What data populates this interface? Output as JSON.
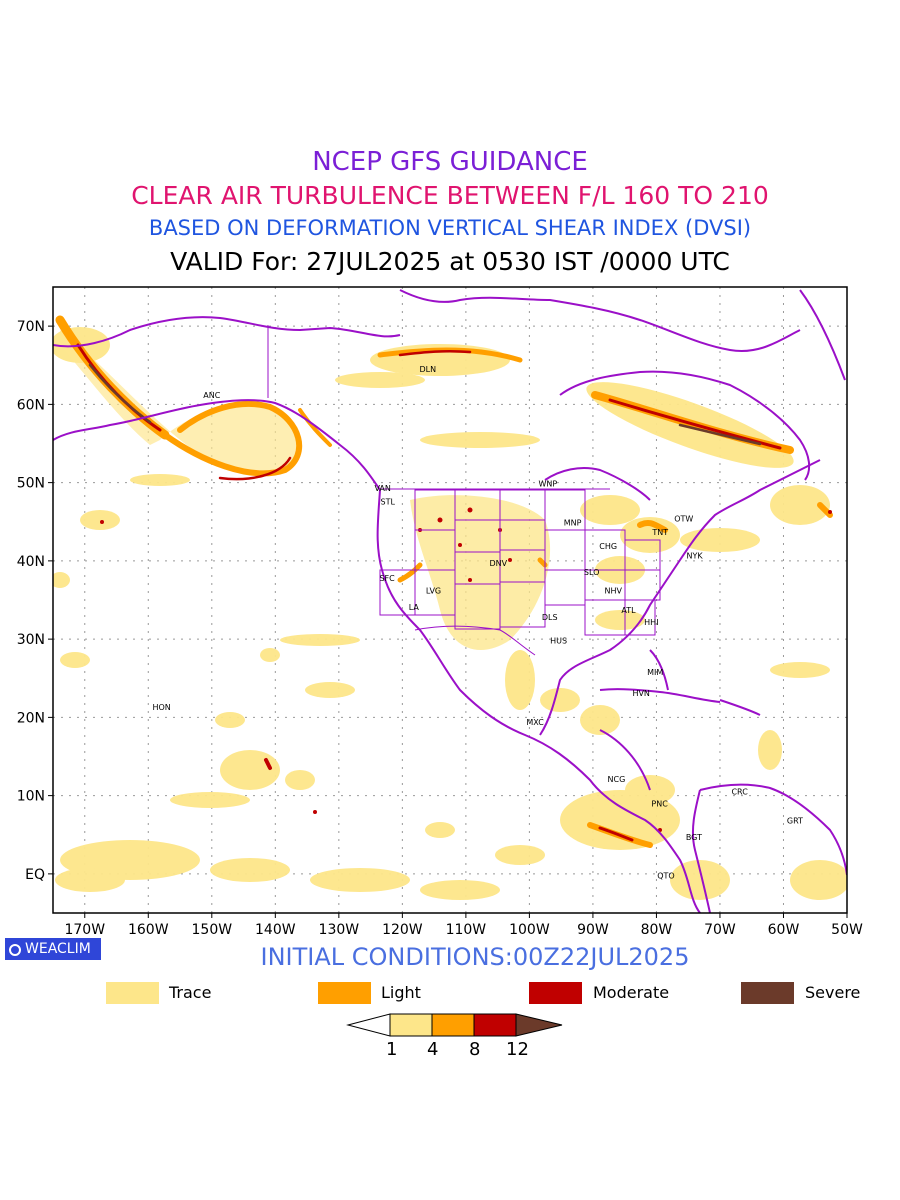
{
  "header": {
    "line1": "NCEP GFS GUIDANCE",
    "line2": "CLEAR AIR TURBULENCE BETWEEN F/L 160 TO 210",
    "line3": "BASED ON DEFORMATION VERTICAL SHEAR INDEX (DVSI)",
    "line4": "VALID For: 27JUL2025 at 0530 IST /0000 UTC"
  },
  "map": {
    "lat_labels": [
      "70N",
      "60N",
      "50N",
      "40N",
      "30N",
      "20N",
      "10N",
      "EQ"
    ],
    "lon_labels": [
      "170W",
      "160W",
      "150W",
      "140W",
      "130W",
      "120W",
      "110W",
      "100W",
      "90W",
      "80W",
      "70W",
      "60W",
      "50W"
    ],
    "lat_range": [
      -5,
      75
    ],
    "lon_range": [
      -175,
      -50
    ],
    "grid": true,
    "stations": [
      {
        "code": "ANC",
        "lon": -150,
        "lat": 61.2
      },
      {
        "code": "DLN",
        "lon": -116,
        "lat": 64.5
      },
      {
        "code": "VAN",
        "lon": -123.1,
        "lat": 49.3
      },
      {
        "code": "STL",
        "lon": -122.3,
        "lat": 47.6
      },
      {
        "code": "WNP",
        "lon": -97.1,
        "lat": 49.9
      },
      {
        "code": "MNP",
        "lon": -93.2,
        "lat": 44.9
      },
      {
        "code": "TNT",
        "lon": -79.4,
        "lat": 43.7
      },
      {
        "code": "OTW",
        "lon": -75.7,
        "lat": 45.4
      },
      {
        "code": "CHG",
        "lon": -87.6,
        "lat": 41.9
      },
      {
        "code": "NYK",
        "lon": -74,
        "lat": 40.7
      },
      {
        "code": "DNV",
        "lon": -104.9,
        "lat": 39.7
      },
      {
        "code": "SFC",
        "lon": -122.4,
        "lat": 37.8
      },
      {
        "code": "SLO",
        "lon": -90.2,
        "lat": 38.6
      },
      {
        "code": "LVG",
        "lon": -115.1,
        "lat": 36.2
      },
      {
        "code": "NHV",
        "lon": -86.8,
        "lat": 36.2
      },
      {
        "code": "LA",
        "lon": -118.2,
        "lat": 34.1
      },
      {
        "code": "ATL",
        "lon": -84.4,
        "lat": 33.7
      },
      {
        "code": "DLS",
        "lon": -96.8,
        "lat": 32.8
      },
      {
        "code": "HHI",
        "lon": -80.8,
        "lat": 32.2
      },
      {
        "code": "HUS",
        "lon": -95.4,
        "lat": 29.8
      },
      {
        "code": "MIM",
        "lon": -80.2,
        "lat": 25.8
      },
      {
        "code": "HVN",
        "lon": -82.4,
        "lat": 23.1
      },
      {
        "code": "HON",
        "lon": -157.9,
        "lat": 21.3
      },
      {
        "code": "MXC",
        "lon": -99.1,
        "lat": 19.4
      },
      {
        "code": "NCG",
        "lon": -86.3,
        "lat": 12.1
      },
      {
        "code": "CRC",
        "lon": -66.9,
        "lat": 10.5
      },
      {
        "code": "PNC",
        "lon": -79.5,
        "lat": 9
      },
      {
        "code": "GRT",
        "lon": -58.2,
        "lat": 6.8
      },
      {
        "code": "BGT",
        "lon": -74.1,
        "lat": 4.7
      },
      {
        "code": "QTO",
        "lon": -78.5,
        "lat": -0.2
      }
    ]
  },
  "badge": {
    "label": "WEACLIM"
  },
  "initial_conditions": "INITIAL CONDITIONS:00Z22JUL2025",
  "legend": [
    {
      "label": "Trace",
      "color": "#fde68a"
    },
    {
      "label": "Light",
      "color": "#ff9f00"
    },
    {
      "label": "Moderate",
      "color": "#c00000"
    },
    {
      "label": "Severe",
      "color": "#6b3a2a"
    }
  ],
  "colorbar": {
    "ticks": [
      "1",
      "4",
      "8",
      "12"
    ],
    "colors": [
      "#ffffff",
      "#fde68a",
      "#ff9f00",
      "#c00000",
      "#6b3a2a"
    ]
  }
}
